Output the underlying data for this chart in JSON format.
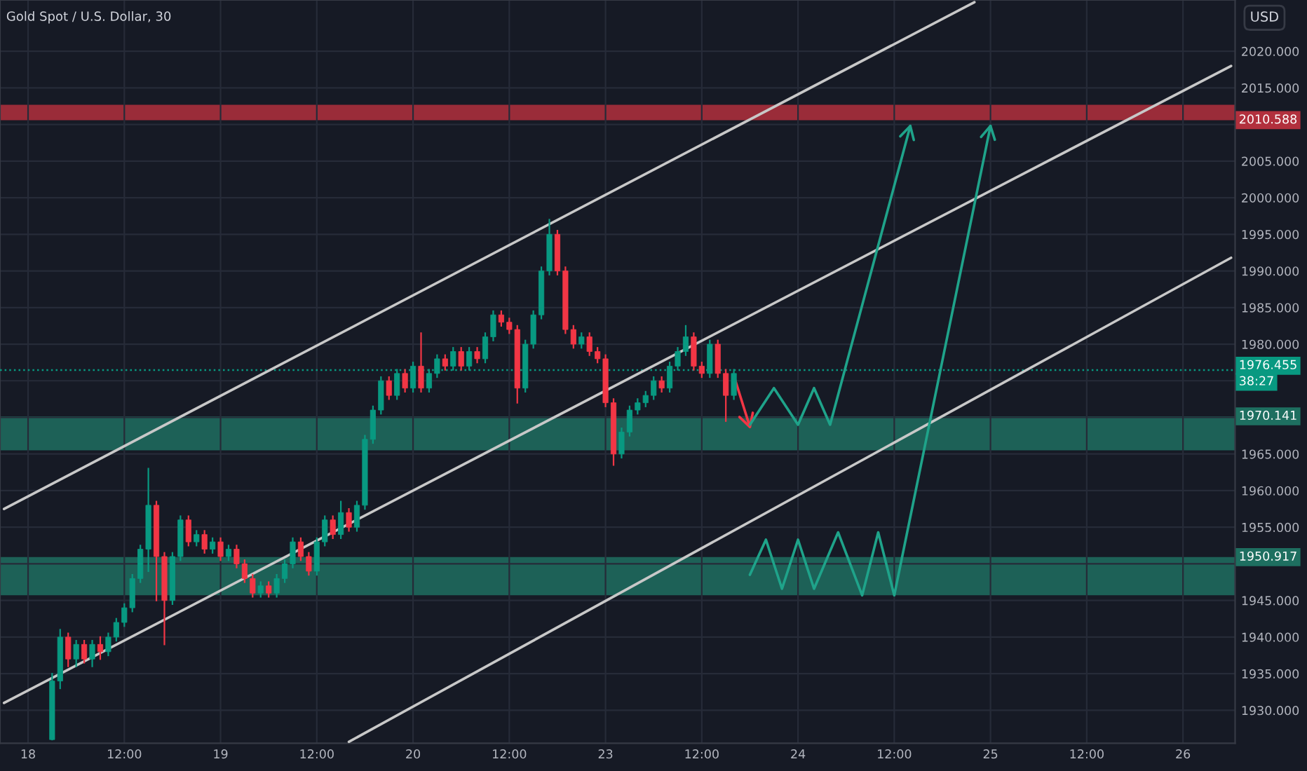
{
  "chart_data": {
    "type": "candlestick",
    "title": "Gold Spot / U.S. Dollar, 30",
    "ylabel": "USD",
    "categories": [
      null,
      null,
      null,
      "18",
      null,
      null,
      null,
      null,
      null,
      null,
      null,
      null,
      null,
      null,
      null,
      "12:00",
      null,
      null,
      null,
      null,
      null,
      null,
      null,
      null,
      null,
      null,
      null,
      "19",
      null,
      null,
      null,
      null,
      null,
      null,
      null,
      null,
      null,
      null,
      null,
      "12:00",
      null,
      null,
      null,
      null,
      null,
      null,
      null,
      null,
      null,
      null,
      null,
      "20",
      null,
      null,
      null,
      null,
      null,
      null,
      null,
      null,
      null,
      null,
      null,
      "12:00",
      null,
      null,
      null,
      null,
      null,
      null,
      null,
      null,
      null,
      null,
      null,
      "23",
      null,
      null,
      null,
      null,
      null,
      null,
      null,
      null,
      null,
      null,
      null,
      "12:00",
      null,
      null,
      null,
      null,
      null,
      null,
      null,
      null,
      null,
      null,
      null,
      "24",
      null,
      null,
      null,
      null,
      null,
      null,
      null,
      null,
      null,
      null,
      null,
      "12:00",
      null,
      null,
      null,
      null,
      null,
      null,
      null,
      null,
      null,
      null,
      null,
      "25",
      null,
      null,
      null,
      null,
      null,
      null,
      null,
      null,
      null,
      null,
      null,
      "12:00",
      null,
      null,
      null,
      null,
      null,
      null,
      null,
      null,
      null,
      null,
      null,
      "26",
      null,
      null,
      null,
      null,
      null,
      null
    ],
    "ohlc": [
      null,
      null,
      null,
      null,
      null,
      null,
      [
        1926,
        1935,
        1926,
        1934
      ],
      [
        1934,
        1941,
        1933,
        1940
      ],
      [
        1940,
        1940.5,
        1936,
        1937
      ],
      [
        1937,
        1939.5,
        1936,
        1939
      ],
      [
        1939,
        1939.5,
        1936.5,
        1937
      ],
      [
        1937,
        1939.5,
        1936,
        1939
      ],
      [
        1939,
        1940,
        1937,
        1938
      ],
      [
        1938,
        1940.5,
        1937.5,
        1940
      ],
      [
        1940,
        1942.5,
        1939.5,
        1942
      ],
      [
        1942,
        1944.5,
        1941.5,
        1944
      ],
      [
        1944,
        1948.5,
        1943.5,
        1948
      ],
      [
        1948,
        1952.5,
        1947.5,
        1952
      ],
      [
        1952,
        1963,
        1949,
        1958
      ],
      [
        1958,
        1958.5,
        1945,
        1951
      ],
      [
        1951,
        1951.5,
        1939,
        1945
      ],
      [
        1945,
        1951.5,
        1944.5,
        1951
      ],
      [
        1951,
        1956.5,
        1950.5,
        1956
      ],
      [
        1956,
        1956.5,
        1952.5,
        1953
      ],
      [
        1953,
        1954.5,
        1952.5,
        1954
      ],
      [
        1954,
        1954.5,
        1951.5,
        1952
      ],
      [
        1952,
        1953.5,
        1951.5,
        1953
      ],
      [
        1953,
        1953.5,
        1950.5,
        1951
      ],
      [
        1951,
        1952.5,
        1950.5,
        1952
      ],
      [
        1952,
        1952.5,
        1949.5,
        1950
      ],
      [
        1950,
        1950.5,
        1947.5,
        1948
      ],
      [
        1948,
        1948.5,
        1945.5,
        1946
      ],
      [
        1946,
        1947.5,
        1945.5,
        1947
      ],
      [
        1947,
        1947.5,
        1945.5,
        1946
      ],
      [
        1946,
        1948.5,
        1945.5,
        1948
      ],
      [
        1948,
        1950.5,
        1947.5,
        1950
      ],
      [
        1950,
        1953.5,
        1949.5,
        1953
      ],
      [
        1953,
        1953.5,
        1950.5,
        1951
      ],
      [
        1951,
        1951.5,
        1948.5,
        1949
      ],
      [
        1949,
        1953.5,
        1948.5,
        1953
      ],
      [
        1953,
        1956.5,
        1952.5,
        1956
      ],
      [
        1956,
        1956.5,
        1953.5,
        1954
      ],
      [
        1954,
        1958.5,
        1953.5,
        1957
      ],
      [
        1957,
        1957.5,
        1954.5,
        1955
      ],
      [
        1955,
        1958.5,
        1954.5,
        1958
      ],
      [
        1958,
        1967.5,
        1957.5,
        1967
      ],
      [
        1967,
        1971.5,
        1966.5,
        1971
      ],
      [
        1971,
        1975.5,
        1970.5,
        1975
      ],
      [
        1975,
        1975.5,
        1972.5,
        1973
      ],
      [
        1973,
        1976.5,
        1972.5,
        1976
      ],
      [
        1976,
        1976.5,
        1973.5,
        1974
      ],
      [
        1974,
        1977.5,
        1973.5,
        1977
      ],
      [
        1977,
        1981.5,
        1973.5,
        1974
      ],
      [
        1974,
        1976.5,
        1973.5,
        1976
      ],
      [
        1976,
        1978.5,
        1975.5,
        1978
      ],
      [
        1978,
        1978.5,
        1976.5,
        1977
      ],
      [
        1977,
        1979.5,
        1976.5,
        1979
      ],
      [
        1979,
        1979.5,
        1976.5,
        1977
      ],
      [
        1977,
        1979.5,
        1976.5,
        1979
      ],
      [
        1979,
        1979.5,
        1977.5,
        1978
      ],
      [
        1978,
        1981.5,
        1977.5,
        1981
      ],
      [
        1981,
        1984.5,
        1980.5,
        1984
      ],
      [
        1984,
        1984.5,
        1982.5,
        1983
      ],
      [
        1983,
        1983.5,
        1981.5,
        1982
      ],
      [
        1982,
        1982.5,
        1972,
        1974
      ],
      [
        1974,
        1980.5,
        1973.5,
        1980
      ],
      [
        1980,
        1984.5,
        1979.5,
        1984
      ],
      [
        1984,
        1990.5,
        1983.5,
        1990
      ],
      [
        1990,
        1997,
        1989.5,
        1995
      ],
      [
        1995,
        1995.5,
        1989.5,
        1990
      ],
      [
        1990,
        1990.5,
        1981.5,
        1982
      ],
      [
        1982,
        1982.5,
        1979.5,
        1980
      ],
      [
        1980,
        1981.5,
        1979.5,
        1981
      ],
      [
        1981,
        1981.5,
        1978.5,
        1979
      ],
      [
        1979,
        1979.5,
        1977.5,
        1978
      ],
      [
        1978,
        1978.5,
        1971.5,
        1972
      ],
      [
        1972,
        1972.5,
        1963.5,
        1965
      ],
      [
        1965,
        1968.5,
        1964.5,
        1968
      ],
      [
        1968,
        1971.5,
        1967.5,
        1971
      ],
      [
        1971,
        1972.5,
        1970.5,
        1972
      ],
      [
        1972,
        1973.5,
        1971.5,
        1973
      ],
      [
        1973,
        1975.5,
        1972.5,
        1975
      ],
      [
        1975,
        1975.5,
        1973.5,
        1974
      ],
      [
        1974,
        1977.5,
        1973.5,
        1977
      ],
      [
        1977,
        1979.5,
        1976.5,
        1979
      ],
      [
        1979,
        1982.5,
        1978.5,
        1981
      ],
      [
        1981,
        1981.5,
        1976.5,
        1977
      ],
      [
        1977,
        1977.5,
        1975.5,
        1976
      ],
      [
        1976,
        1980.5,
        1975.5,
        1980
      ],
      [
        1980,
        1980.5,
        1975.5,
        1976
      ],
      [
        1976,
        1976.5,
        1969.5,
        1973
      ],
      [
        1973,
        1976.5,
        1972.5,
        1976
      ],
      null,
      null,
      null,
      null,
      null,
      null,
      null,
      null,
      null,
      null,
      null,
      null,
      null,
      null,
      null,
      null,
      null,
      null,
      null,
      null,
      null,
      null,
      null,
      null,
      null,
      null,
      null,
      null,
      null,
      null,
      null,
      null,
      null,
      null,
      null,
      null,
      null,
      null,
      null,
      null,
      null,
      null,
      null,
      null,
      null,
      null,
      null,
      null,
      null,
      null,
      null,
      null,
      null,
      null,
      null,
      null,
      null,
      null,
      null,
      null,
      null,
      null
    ],
    "colors": [
      null,
      null,
      null,
      null,
      null,
      null,
      "#089981",
      "#089981",
      "#f23645",
      "#089981",
      "#f23645",
      "#089981",
      "#f23645",
      "#089981",
      "#089981",
      "#089981",
      "#089981",
      "#089981",
      "#089981",
      "#f23645",
      "#f23645",
      "#089981",
      "#089981",
      "#f23645",
      "#089981",
      "#f23645",
      "#089981",
      "#f23645",
      "#089981",
      "#f23645",
      "#f23645",
      "#f23645",
      "#089981",
      "#f23645",
      "#089981",
      "#089981",
      "#089981",
      "#f23645",
      "#f23645",
      "#089981",
      "#089981",
      "#f23645",
      "#089981",
      "#f23645",
      "#089981",
      "#089981",
      "#089981",
      "#089981",
      "#f23645",
      "#089981",
      "#f23645",
      "#089981",
      "#f23645",
      "#089981",
      "#089981",
      "#f23645",
      "#089981",
      "#f23645",
      "#089981",
      "#f23645",
      "#089981",
      "#089981",
      "#f23645",
      "#f23645",
      "#f23645",
      "#089981",
      "#089981",
      "#089981",
      "#089981",
      "#f23645",
      "#f23645",
      "#f23645",
      "#089981",
      "#f23645",
      "#f23645",
      "#f23645",
      "#f23645",
      "#089981",
      "#089981",
      "#089981",
      "#089981",
      "#089981",
      "#f23645",
      "#089981",
      "#089981",
      "#089981",
      "#f23645",
      "#f23645",
      "#089981",
      "#f23645",
      "#f23645",
      "#089981",
      null,
      null,
      null,
      null,
      null,
      null,
      null,
      null,
      null,
      null,
      null,
      null,
      null,
      null,
      null,
      null,
      null,
      null,
      null,
      null,
      null,
      null,
      null,
      null,
      null,
      null,
      null,
      null,
      null,
      null,
      null,
      null,
      null,
      null,
      null,
      null,
      null,
      null,
      null,
      null,
      null,
      null,
      null,
      null,
      null,
      null,
      null,
      null,
      null,
      null,
      null,
      null,
      null,
      null,
      null,
      null,
      null,
      null,
      null,
      null,
      null,
      null
    ],
    "series": [
      {
        "type": "line",
        "color": "#c8c8c8",
        "values": [
          1957.5,
          null,
          null,
          null,
          null,
          null,
          null,
          null,
          null,
          null,
          null,
          null,
          null,
          null,
          null,
          null,
          null,
          null,
          null,
          null,
          null,
          null,
          null,
          null,
          null,
          null,
          null,
          null,
          null,
          null,
          null,
          null,
          null,
          null,
          null,
          null,
          null,
          null,
          null,
          null,
          null,
          null,
          null,
          null,
          null,
          null,
          null,
          null,
          null,
          null,
          null,
          null,
          null,
          null,
          null,
          null,
          null,
          null,
          null,
          null,
          null,
          null,
          null,
          null,
          null,
          null,
          null,
          null,
          null,
          null,
          null,
          null,
          null,
          null,
          null,
          null,
          null,
          null,
          null,
          null,
          null,
          null,
          null,
          null,
          null,
          null,
          null,
          null,
          null,
          null,
          null,
          null,
          null,
          null,
          null,
          null,
          null,
          null,
          null,
          null,
          null,
          null,
          null,
          null,
          null,
          null,
          null,
          null,
          null,
          null,
          null,
          null,
          null,
          null,
          null,
          null,
          null,
          null,
          null,
          null,
          null,
          2026.7,
          null,
          null,
          null,
          null,
          null,
          null,
          null,
          null,
          null,
          null,
          null,
          null,
          null,
          null,
          null,
          null,
          null,
          null,
          null,
          null,
          null,
          null,
          null,
          null,
          null,
          null,
          null,
          null,
          null,
          null,
          null,
          null
        ]
      },
      {
        "type": "line",
        "color": "#c8c8c8",
        "values": [
          1931.0,
          null,
          null,
          null,
          null,
          null,
          null,
          null,
          null,
          null,
          null,
          null,
          null,
          null,
          null,
          null,
          null,
          null,
          null,
          null,
          null,
          null,
          null,
          null,
          null,
          null,
          null,
          null,
          null,
          null,
          null,
          null,
          null,
          null,
          null,
          null,
          null,
          null,
          null,
          null,
          null,
          null,
          null,
          null,
          null,
          null,
          null,
          null,
          null,
          null,
          null,
          null,
          null,
          null,
          null,
          null,
          null,
          null,
          null,
          null,
          null,
          null,
          null,
          null,
          null,
          null,
          null,
          null,
          null,
          null,
          null,
          null,
          null,
          null,
          null,
          null,
          null,
          null,
          null,
          null,
          null,
          null,
          null,
          null,
          null,
          null,
          null,
          null,
          null,
          null,
          null,
          null,
          null,
          null,
          null,
          null,
          null,
          null,
          null,
          null,
          null,
          null,
          null,
          null,
          null,
          null,
          null,
          null,
          null,
          null,
          null,
          null,
          null,
          null,
          null,
          null,
          null,
          null,
          null,
          null,
          null,
          null,
          null,
          null,
          null,
          null,
          null,
          null,
          null,
          null,
          null,
          null,
          null,
          null,
          null,
          null,
          null,
          null,
          null,
          null,
          null,
          null,
          null,
          null,
          null,
          null,
          null,
          null,
          null,
          null,
          null,
          null,
          null,
          2018.0
        ]
      },
      {
        "type": "line",
        "color": "#c8c8c8",
        "values": [
          null,
          null,
          null,
          null,
          null,
          null,
          null,
          null,
          null,
          null,
          null,
          null,
          null,
          null,
          null,
          null,
          null,
          null,
          null,
          null,
          null,
          null,
          null,
          null,
          null,
          null,
          null,
          null,
          null,
          null,
          null,
          null,
          null,
          null,
          null,
          null,
          null,
          null,
          null,
          null,
          null,
          null,
          null,
          1925.7,
          null,
          null,
          null,
          null,
          null,
          null,
          null,
          null,
          null,
          null,
          null,
          null,
          null,
          null,
          null,
          null,
          null,
          null,
          null,
          null,
          null,
          null,
          null,
          null,
          null,
          null,
          null,
          null,
          null,
          null,
          null,
          null,
          null,
          null,
          null,
          null,
          null,
          null,
          null,
          null,
          null,
          null,
          null,
          null,
          null,
          null,
          null,
          null,
          null,
          null,
          null,
          null,
          null,
          null,
          null,
          null,
          null,
          null,
          null,
          null,
          null,
          null,
          null,
          null,
          null,
          null,
          null,
          null,
          null,
          null,
          null,
          null,
          null,
          null,
          null,
          null,
          null,
          null,
          null,
          null,
          null,
          null,
          null,
          null,
          null,
          null,
          null,
          null,
          null,
          null,
          null,
          null,
          null,
          null,
          null,
          null,
          null,
          null,
          null,
          null,
          null,
          null,
          null,
          null,
          null,
          null,
          null,
          null,
          null,
          1991.8
        ]
      },
      {
        "type": "line",
        "color": "#f23645",
        "values": [
          null,
          null,
          null,
          null,
          null,
          null,
          null,
          null,
          null,
          null,
          null,
          null,
          null,
          null,
          null,
          null,
          null,
          null,
          null,
          null,
          null,
          null,
          null,
          null,
          null,
          null,
          null,
          null,
          null,
          null,
          null,
          null,
          null,
          null,
          null,
          null,
          null,
          null,
          null,
          null,
          null,
          null,
          null,
          null,
          null,
          null,
          null,
          null,
          null,
          null,
          null,
          null,
          null,
          null,
          null,
          null,
          null,
          null,
          null,
          null,
          null,
          null,
          null,
          null,
          null,
          null,
          null,
          null,
          null,
          null,
          null,
          null,
          null,
          null,
          null,
          null,
          null,
          null,
          null,
          null,
          null,
          null,
          null,
          null,
          null,
          null,
          null,
          null,
          null,
          null,
          null,
          1975.7,
          null,
          1968.7,
          null,
          null,
          null,
          null,
          null,
          null,
          null,
          null,
          null,
          null,
          null,
          null,
          null,
          null,
          null,
          null,
          null,
          null,
          null,
          null,
          null,
          null,
          null,
          null,
          null,
          null,
          null,
          null,
          null,
          null,
          null,
          null,
          null,
          null,
          null,
          null,
          null,
          null,
          null,
          null,
          null,
          null,
          null,
          null,
          null,
          null,
          null,
          null,
          null,
          null,
          null,
          null,
          null,
          null,
          null,
          null,
          null,
          null,
          null,
          null
        ]
      },
      {
        "type": "line",
        "color": "#1fa38a",
        "values": [
          null,
          null,
          null,
          null,
          null,
          null,
          null,
          null,
          null,
          null,
          null,
          null,
          null,
          null,
          null,
          null,
          null,
          null,
          null,
          null,
          null,
          null,
          null,
          null,
          null,
          null,
          null,
          null,
          null,
          null,
          null,
          null,
          null,
          null,
          null,
          null,
          null,
          null,
          null,
          null,
          null,
          null,
          null,
          null,
          null,
          null,
          null,
          null,
          null,
          null,
          null,
          null,
          null,
          null,
          null,
          null,
          null,
          null,
          null,
          null,
          null,
          null,
          null,
          null,
          null,
          null,
          null,
          null,
          null,
          null,
          null,
          null,
          null,
          null,
          null,
          null,
          null,
          null,
          null,
          null,
          null,
          null,
          null,
          null,
          null,
          null,
          null,
          null,
          null,
          null,
          null,
          null,
          null,
          1969.0,
          null,
          null,
          1974.0,
          null,
          null,
          1969.0,
          null,
          1974.0,
          null,
          1969.0,
          null,
          null,
          null,
          null,
          null,
          null,
          null,
          null,
          null,
          2009.8,
          null,
          null,
          null,
          null,
          null,
          null,
          null,
          null,
          null,
          null,
          null,
          null,
          null,
          null,
          null,
          null,
          null,
          null,
          null,
          null,
          null,
          null,
          null,
          null,
          null,
          null,
          null,
          null,
          null,
          null,
          null,
          null,
          null,
          null,
          null,
          null,
          null,
          null,
          null,
          null
        ]
      },
      {
        "type": "line",
        "color": "#1fa38a",
        "values": [
          null,
          null,
          null,
          null,
          null,
          null,
          null,
          null,
          null,
          null,
          null,
          null,
          null,
          null,
          null,
          null,
          null,
          null,
          null,
          null,
          null,
          null,
          null,
          null,
          null,
          null,
          null,
          null,
          null,
          null,
          null,
          null,
          null,
          null,
          null,
          null,
          null,
          null,
          null,
          null,
          null,
          null,
          null,
          null,
          null,
          null,
          null,
          null,
          null,
          null,
          null,
          null,
          null,
          null,
          null,
          null,
          null,
          null,
          null,
          null,
          null,
          null,
          null,
          null,
          null,
          null,
          null,
          null,
          null,
          null,
          null,
          null,
          null,
          null,
          null,
          null,
          null,
          null,
          null,
          null,
          null,
          null,
          null,
          null,
          null,
          null,
          null,
          null,
          null,
          null,
          null,
          null,
          null,
          1948.5,
          null,
          1953.3,
          null,
          1946.6,
          null,
          1953.3,
          null,
          1946.6,
          null,
          null,
          1954.3,
          null,
          null,
          1945.7,
          null,
          1954.3,
          null,
          1945.7,
          null,
          null,
          null,
          null,
          null,
          null,
          null,
          null,
          null,
          null,
          null,
          2009.8,
          null,
          null,
          null,
          null,
          null,
          null,
          null,
          null,
          null,
          null,
          null,
          null,
          null,
          null,
          null,
          null,
          null,
          null,
          null,
          null,
          null,
          null,
          null,
          null,
          null,
          null,
          null,
          null,
          null,
          null
        ]
      }
    ],
    "bands": [
      {
        "axis": "y",
        "from": 2010.588,
        "to": 2012.7,
        "label": "2010.588",
        "color": "#b2303d"
      },
      {
        "axis": "y",
        "from": 1970.141,
        "to": 1965.5,
        "label": "1970.141",
        "color": "#1e6f60"
      },
      {
        "axis": "y",
        "from": 1950.917,
        "to": 1945.7,
        "label": "1950.917",
        "color": "#1e6f60"
      }
    ],
    "ref_lines": [
      {
        "axis": "y",
        "value": 1976.455,
        "label": "1976.455",
        "color": "#089981",
        "line_style": "dotted"
      }
    ],
    "annotations": [
      "38:27"
    ],
    "ylim": [
      1925.5,
      2027
    ],
    "yticks": [
      {
        "value": 1930,
        "label": "1930.000"
      },
      {
        "value": 1935,
        "label": "1935.000"
      },
      {
        "value": 1940,
        "label": "1940.000"
      },
      {
        "value": 1945,
        "label": "1945.000"
      },
      {
        "value": 1950,
        "label": null
      },
      {
        "value": 1955,
        "label": "1955.000"
      },
      {
        "value": 1960,
        "label": "1960.000"
      },
      {
        "value": 1965,
        "label": "1965.000"
      },
      {
        "value": 1970,
        "label": null
      },
      {
        "value": 1975,
        "label": null
      },
      {
        "value": 1980,
        "label": "1980.000"
      },
      {
        "value": 1985,
        "label": "1985.000"
      },
      {
        "value": 1990,
        "label": "1990.000"
      },
      {
        "value": 1995,
        "label": "1995.000"
      },
      {
        "value": 2000,
        "label": "2000.000"
      },
      {
        "value": 2005,
        "label": "2005.000"
      },
      {
        "value": 2010,
        "label": null
      },
      {
        "value": 2015,
        "label": "2015.000"
      },
      {
        "value": 2020,
        "label": "2020.000"
      }
    ],
    "grid": true
  }
}
